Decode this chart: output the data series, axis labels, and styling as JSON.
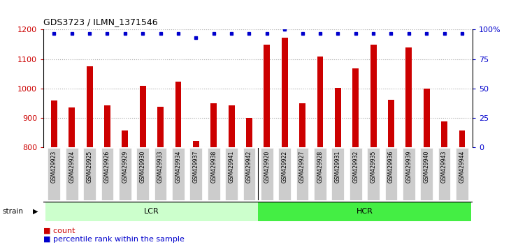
{
  "title": "GDS3723 / ILMN_1371546",
  "categories": [
    "GSM429923",
    "GSM429924",
    "GSM429925",
    "GSM429926",
    "GSM429929",
    "GSM429930",
    "GSM429933",
    "GSM429934",
    "GSM429937",
    "GSM429938",
    "GSM429941",
    "GSM429942",
    "GSM429920",
    "GSM429922",
    "GSM429927",
    "GSM429928",
    "GSM429931",
    "GSM429932",
    "GSM429935",
    "GSM429936",
    "GSM429939",
    "GSM429940",
    "GSM429943",
    "GSM429944"
  ],
  "counts": [
    958,
    935,
    1075,
    942,
    857,
    1008,
    937,
    1023,
    820,
    950,
    943,
    898,
    1148,
    1172,
    948,
    1108,
    1002,
    1068,
    1148,
    962,
    1140,
    1000,
    886,
    857
  ],
  "percentile_ranks": [
    97,
    97,
    97,
    97,
    97,
    97,
    97,
    97,
    93,
    97,
    97,
    97,
    97,
    100,
    97,
    97,
    97,
    97,
    97,
    97,
    97,
    97,
    97,
    97
  ],
  "lcr_count": 12,
  "hcr_count": 12,
  "lcr_label": "LCR",
  "hcr_label": "HCR",
  "strain_label": "strain",
  "ylim_left": [
    800,
    1200
  ],
  "yticks_left": [
    800,
    900,
    1000,
    1100,
    1200
  ],
  "ylim_right": [
    0,
    100
  ],
  "yticks_right": [
    0,
    25,
    50,
    75,
    100
  ],
  "bar_color": "#cc0000",
  "dot_color": "#0000cc",
  "lcr_color": "#ccffcc",
  "hcr_color": "#44ee44",
  "tick_bg_color": "#cccccc",
  "grid_color": "#aaaaaa",
  "left_tick_color": "#cc0000",
  "right_tick_color": "#0000cc",
  "legend_count_color": "#cc0000",
  "legend_pct_color": "#0000cc",
  "bg_color": "#ffffff"
}
